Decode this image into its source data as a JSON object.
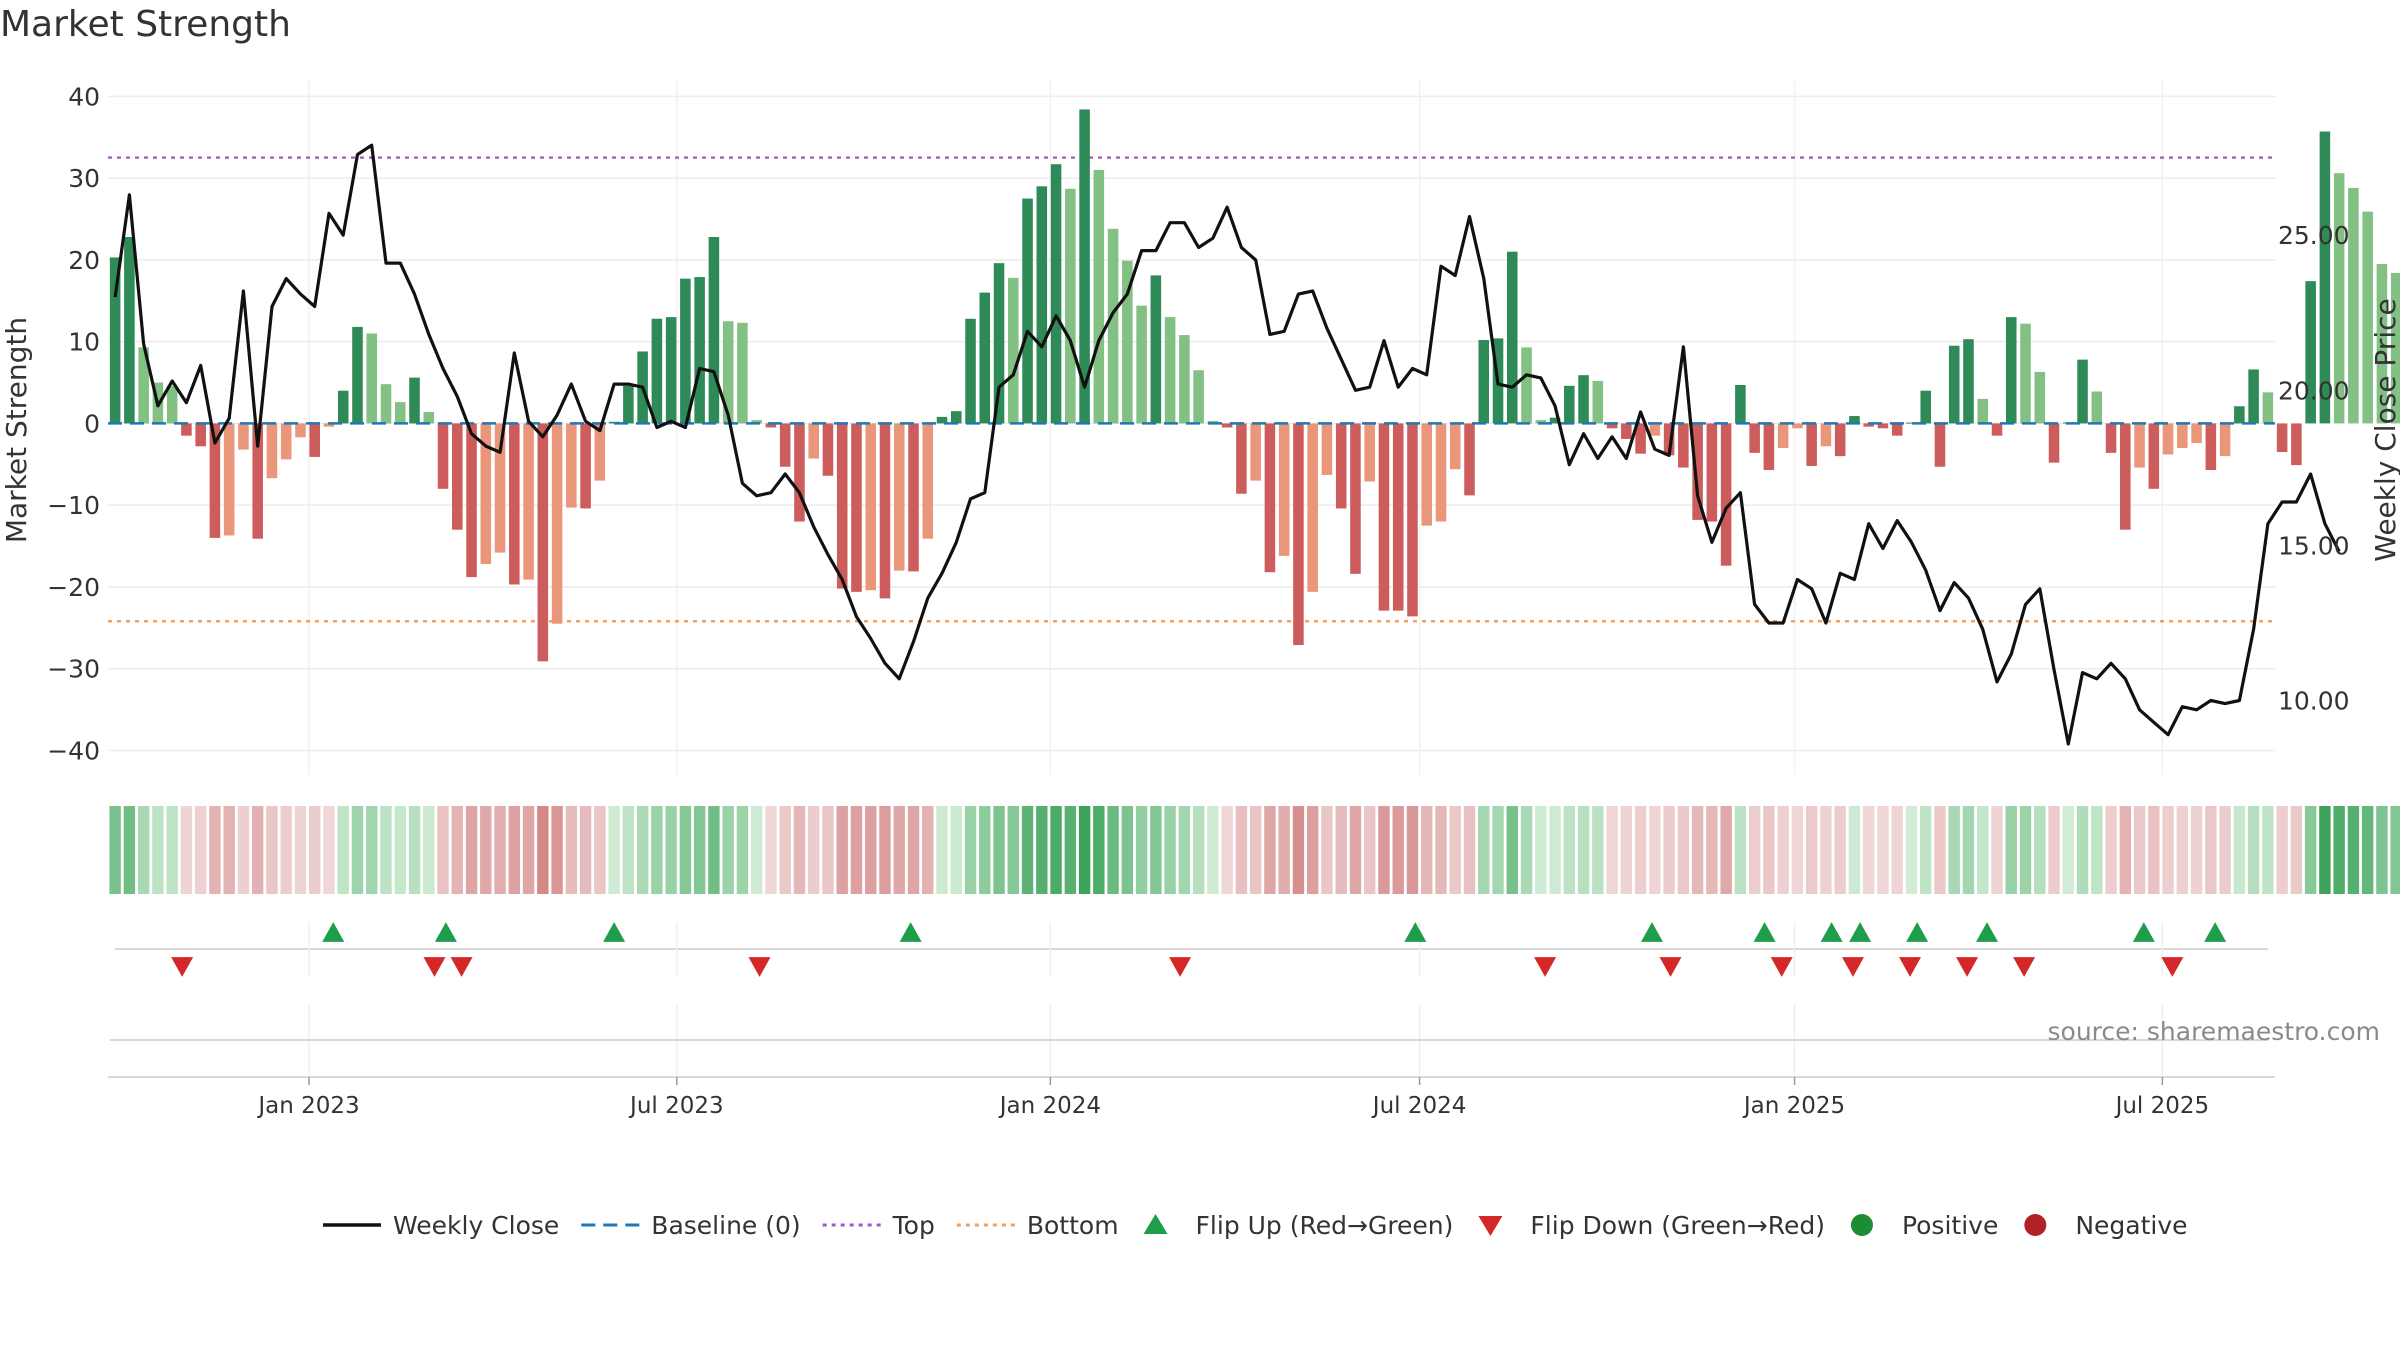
{
  "chart_data": {
    "type": "bar",
    "title": "Market Strength",
    "ylabel": "Market Strength",
    "y2label": "Weekly Close Price",
    "ylim": [
      -43,
      42
    ],
    "y2lim": [
      7.6,
      30.0
    ],
    "yticks": [
      -40,
      -30,
      -20,
      -10,
      0,
      10,
      20,
      30,
      40
    ],
    "y2ticks": [
      "10.00",
      "15.00",
      "20.00",
      "25.00"
    ],
    "top_level": 32.5,
    "bottom_level": -24.2,
    "x_week_range": [
      0,
      152
    ],
    "xticks": [
      {
        "label": "Jan 2023",
        "week": 14.1
      },
      {
        "label": "Jul 2023",
        "week": 39.9
      },
      {
        "label": "Jan 2024",
        "week": 66.1
      },
      {
        "label": "Jul 2024",
        "week": 92.0
      },
      {
        "label": "Jan 2025",
        "week": 118.3
      },
      {
        "label": "Jul 2025",
        "week": 144.1
      }
    ],
    "strength": [
      20.3,
      22.8,
      9.3,
      5.0,
      4.6,
      -1.5,
      -2.8,
      -14.0,
      -13.7,
      -3.2,
      -14.1,
      -6.7,
      -4.4,
      -1.7,
      -4.1,
      -0.4,
      4.0,
      11.8,
      11.0,
      4.8,
      2.6,
      5.6,
      1.4,
      -8.0,
      -13.0,
      -18.8,
      -17.2,
      -15.8,
      -19.7,
      -19.1,
      -29.1,
      -24.5,
      -10.3,
      -10.4,
      -7.0,
      0.2,
      4.6,
      8.8,
      12.8,
      13.0,
      17.7,
      17.9,
      22.8,
      12.5,
      12.3,
      0.4,
      -0.5,
      -5.3,
      -12.0,
      -4.3,
      -6.4,
      -20.2,
      -20.6,
      -20.4,
      -21.4,
      -18.0,
      -18.1,
      -14.1,
      0.8,
      1.5,
      12.8,
      16.0,
      19.6,
      17.8,
      27.5,
      29.0,
      31.7,
      28.7,
      38.4,
      31.0,
      23.8,
      19.9,
      14.4,
      18.1,
      13.0,
      10.8,
      6.5,
      0.3,
      -0.5,
      -8.6,
      -7.0,
      -18.2,
      -16.2,
      -27.1,
      -20.6,
      -6.3,
      -10.4,
      -18.4,
      -7.1,
      -22.9,
      -22.9,
      -23.6,
      -12.5,
      -12.0,
      -5.6,
      -8.8,
      10.2,
      10.4,
      21.0,
      9.3,
      0.4,
      0.7,
      4.6,
      5.9,
      5.2,
      -0.6,
      -1.9,
      -3.7,
      -1.5,
      -3.9,
      -5.4,
      -11.8,
      -12.0,
      -17.4,
      4.7,
      -3.6,
      -5.7,
      -3.0,
      -0.6,
      -5.2,
      -2.8,
      -4.0,
      0.9,
      -0.4,
      -0.6,
      -1.5,
      0.1,
      4.0,
      -5.3,
      9.5,
      10.3,
      3.0,
      -1.5,
      13.0,
      12.2,
      6.3,
      -4.8,
      0.1,
      7.8,
      3.9,
      -3.6,
      -13.0,
      -5.4,
      -8.0,
      -3.8,
      -3.0,
      -2.4,
      -5.7,
      -4.0,
      2.1,
      6.6,
      3.8,
      -3.5,
      -5.1,
      17.4,
      35.7,
      30.6,
      28.8,
      25.9,
      19.5,
      18.4
    ],
    "close": [
      23.0,
      26.3,
      21.5,
      19.5,
      20.3,
      19.6,
      20.8,
      18.3,
      19.1,
      23.2,
      18.2,
      22.7,
      23.6,
      23.1,
      22.7,
      25.7,
      25.0,
      27.6,
      27.9,
      24.1,
      24.1,
      23.1,
      21.8,
      20.7,
      19.8,
      18.6,
      18.2,
      18.0,
      21.2,
      19.0,
      18.5,
      19.2,
      20.2,
      19.0,
      18.7,
      20.2,
      20.2,
      20.1,
      18.8,
      19.0,
      18.8,
      20.7,
      20.6,
      19.2,
      17.0,
      16.6,
      16.7,
      17.3,
      16.7,
      15.6,
      14.7,
      13.9,
      12.7,
      12.0,
      11.2,
      10.7,
      11.9,
      13.3,
      14.1,
      15.1,
      16.5,
      16.7,
      20.1,
      20.5,
      21.9,
      21.4,
      22.4,
      21.6,
      20.1,
      21.6,
      22.5,
      23.1,
      24.5,
      24.5,
      25.4,
      25.4,
      24.6,
      24.9,
      25.9,
      24.6,
      24.2,
      21.8,
      21.9,
      23.1,
      23.2,
      22.0,
      21.0,
      20.0,
      20.1,
      21.6,
      20.1,
      20.7,
      20.5,
      24.0,
      23.7,
      25.6,
      23.6,
      20.2,
      20.1,
      20.5,
      20.4,
      19.5,
      17.6,
      18.6,
      17.8,
      18.5,
      17.8,
      19.3,
      18.1,
      17.9,
      21.4,
      16.6,
      15.1,
      16.2,
      16.7,
      13.1,
      12.5,
      12.5,
      13.9,
      13.6,
      12.5,
      14.1,
      13.9,
      15.7,
      14.9,
      15.8,
      15.1,
      14.2,
      12.9,
      13.8,
      13.3,
      12.3,
      10.6,
      11.5,
      13.1,
      13.6,
      11.0,
      8.6,
      10.9,
      10.7,
      11.2,
      10.7,
      9.7,
      9.3,
      8.9,
      9.8,
      9.7,
      10.0,
      9.9,
      10.0,
      12.3,
      15.7,
      16.4,
      16.4,
      17.3,
      15.7,
      14.8
    ],
    "flips_up_weeks": [
      15.8,
      23.7,
      35.5,
      56.3,
      91.7,
      108.3,
      116.2,
      120.9,
      122.9,
      126.9,
      131.8,
      142.8,
      147.8
    ],
    "flips_down_weeks": [
      5.2,
      22.9,
      24.8,
      45.7,
      75.2,
      100.8,
      109.6,
      117.4,
      122.4,
      126.4,
      130.4,
      134.4,
      144.8
    ],
    "legend": [
      {
        "label": "Weekly Close",
        "symbol": "line-solid",
        "color": "#111111"
      },
      {
        "label": "Baseline (0)",
        "symbol": "line-dashed",
        "color": "#1f77b4"
      },
      {
        "label": "Top",
        "symbol": "line-dotted",
        "color": "#9b59d0"
      },
      {
        "label": "Bottom",
        "symbol": "line-dotted",
        "color": "#f0a060"
      },
      {
        "label": "Flip Up (Red→Green)",
        "symbol": "triangle-up",
        "color": "#1e9e4a"
      },
      {
        "label": "Flip Down (Green→Red)",
        "symbol": "triangle-down",
        "color": "#d62728"
      },
      {
        "label": "Positive",
        "symbol": "circle",
        "color": "#1e8c33"
      },
      {
        "label": "Negative",
        "symbol": "circle",
        "color": "#b22228"
      }
    ],
    "source": "source: sharemaestro.com",
    "colors": {
      "pos_dark": "#2e8b57",
      "pos_light": "#82c083",
      "neg_dark": "#cd5c5c",
      "neg_light": "#e9967a",
      "top_line": "#a569bd",
      "bottom_line": "#f0a060",
      "baseline": "#1f77b4",
      "close_line": "#111111"
    }
  }
}
